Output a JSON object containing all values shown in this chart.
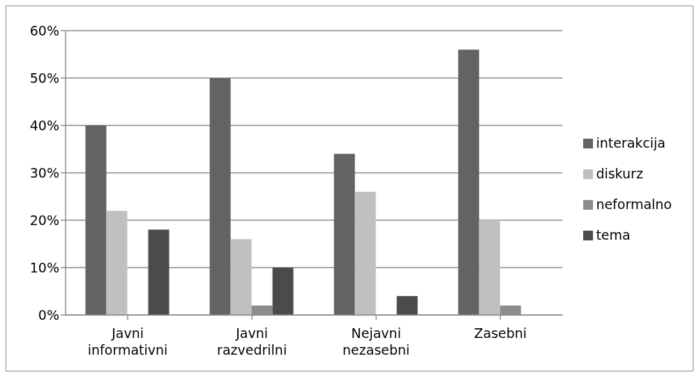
{
  "chart_data": {
    "type": "bar",
    "categories": [
      "Javni informativni",
      "Javni razvedrilni",
      "Nejavni nezasebni",
      "Zasebni"
    ],
    "series": [
      {
        "name": "interakcija",
        "color": "#636363",
        "values": [
          40,
          50,
          34,
          56
        ]
      },
      {
        "name": "diskurz",
        "color": "#c0c0c0",
        "values": [
          22,
          16,
          26,
          20
        ]
      },
      {
        "name": "neformalno",
        "color": "#8c8c8c",
        "values": [
          0,
          2,
          0,
          2
        ]
      },
      {
        "name": "tema",
        "color": "#4b4b4b",
        "values": [
          18,
          10,
          4,
          0
        ]
      }
    ],
    "ylim": [
      0,
      60
    ],
    "yticks": [
      {
        "value": 0,
        "label": "0%"
      },
      {
        "value": 10,
        "label": "10%"
      },
      {
        "value": 20,
        "label": "20%"
      },
      {
        "value": 30,
        "label": "30%"
      },
      {
        "value": 40,
        "label": "40%"
      },
      {
        "value": 50,
        "label": "50%"
      },
      {
        "value": 60,
        "label": "60%"
      }
    ],
    "grid": "y",
    "legend": "right"
  }
}
